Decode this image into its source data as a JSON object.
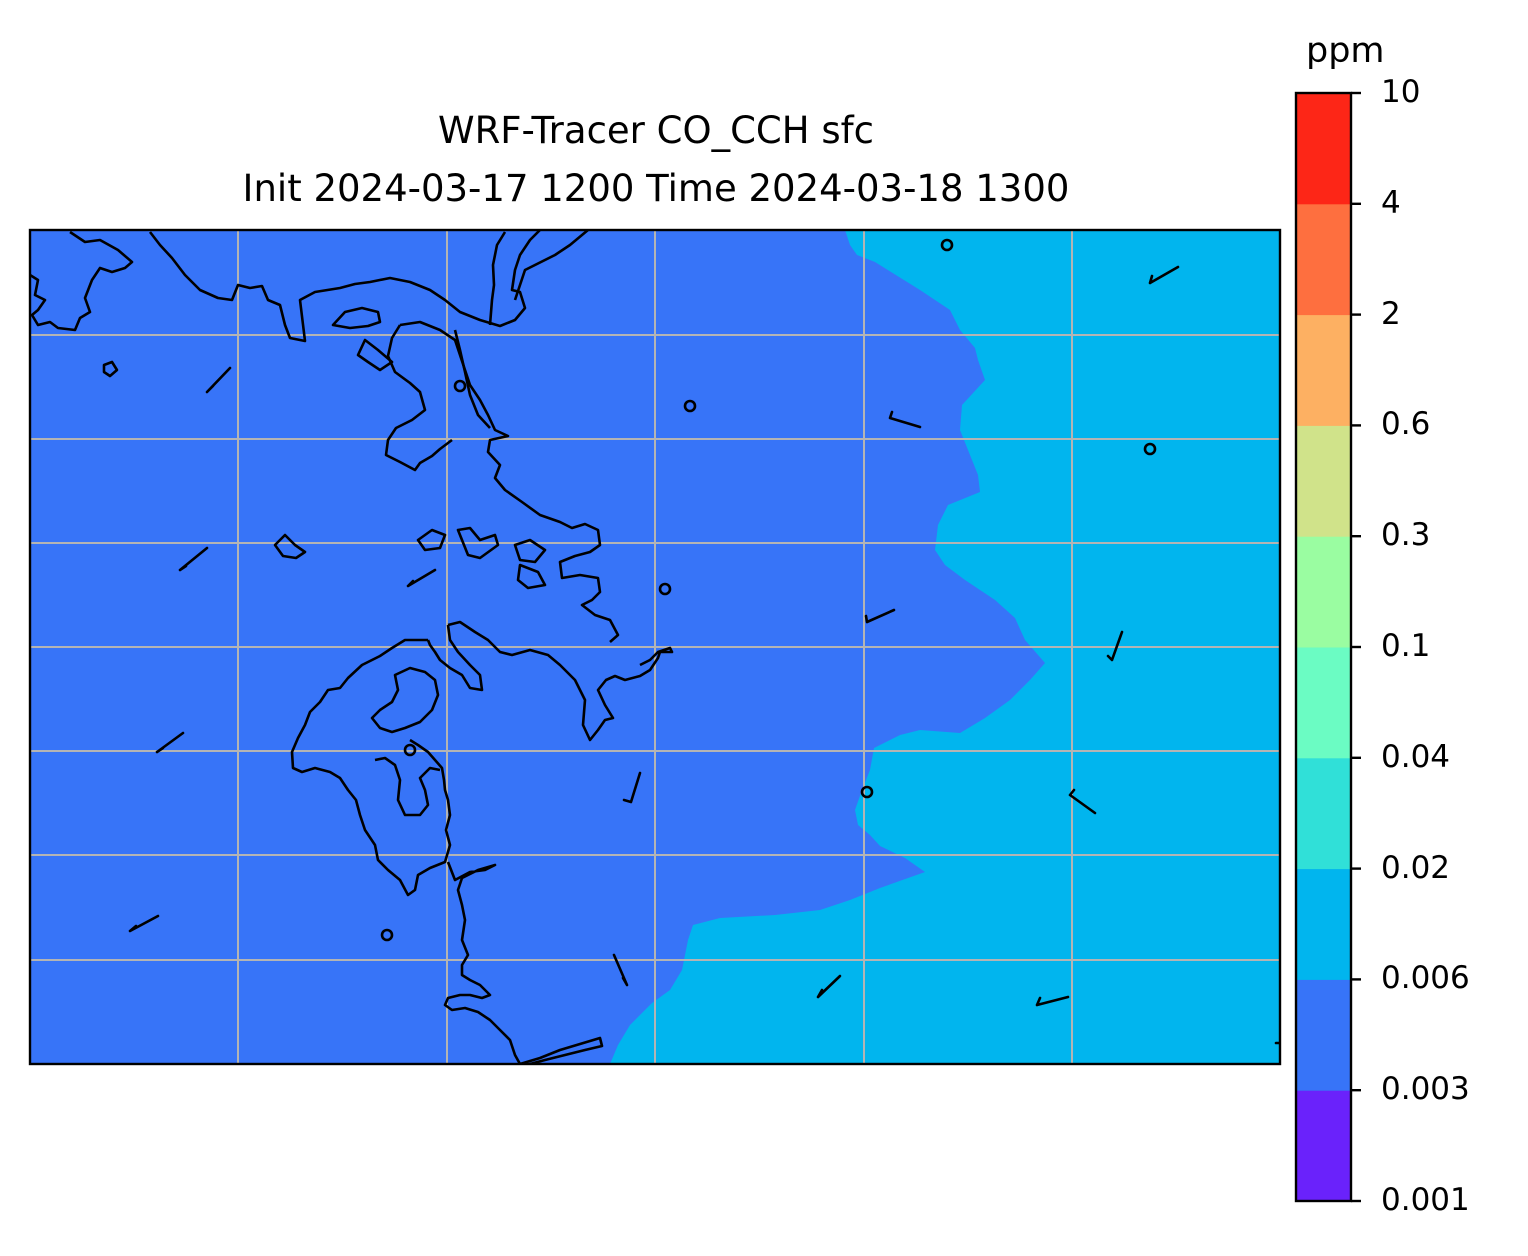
{
  "title": {
    "line1": "WRF-Tracer CO_CCH sfc",
    "line2": "Init 2024-03-17 1200 Time 2024-03-18 1300"
  },
  "colorbar": {
    "unit": "ppm",
    "ticks": [
      "10",
      "4",
      "2",
      "0.6",
      "0.3",
      "0.1",
      "0.04",
      "0.02",
      "0.006",
      "0.003",
      "0.001"
    ],
    "band_colors": [
      "#6a22fb",
      "#3774f8",
      "#01b5ee",
      "#30e0d8",
      "#6bfcc3",
      "#9afda1",
      "#d0e38a",
      "#fdb062",
      "#fe6f3f",
      "#fd2617"
    ]
  },
  "map": {
    "fill_low": "#3774f8",
    "fill_high": "#01b5ee",
    "grid_color": "#b4b4b4",
    "coast_color": "#000000"
  }
}
